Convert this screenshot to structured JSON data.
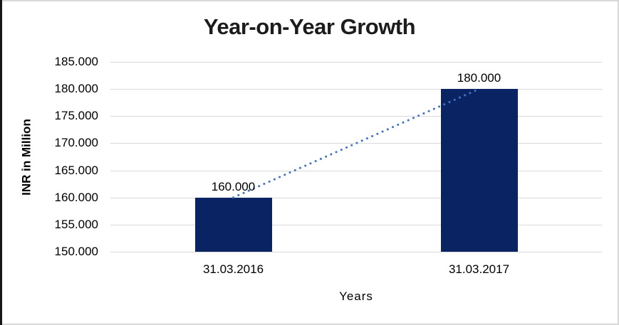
{
  "chart_data": {
    "type": "bar",
    "title": "Year-on-Year Growth",
    "xlabel": "Years",
    "ylabel": "INR in Million",
    "categories": [
      "31.03.2016",
      "31.03.2017"
    ],
    "values": [
      160000,
      180000
    ],
    "data_labels": [
      "160.000",
      "180.000"
    ],
    "ytick_labels": [
      "185.000",
      "180.000",
      "175.000",
      "170.000",
      "165.000",
      "160.000",
      "155.000",
      "150.000"
    ],
    "ytick_values": [
      185000,
      180000,
      175000,
      170000,
      165000,
      160000,
      155000,
      150000
    ],
    "ylim": [
      150000,
      185000
    ],
    "grid": true,
    "legend": false,
    "bar_color": "#0a2463",
    "gridline_color": "#d9d9d9",
    "trendline": {
      "style": "dotted",
      "color": "#4472c4",
      "from": 160000,
      "to": 180000
    }
  }
}
